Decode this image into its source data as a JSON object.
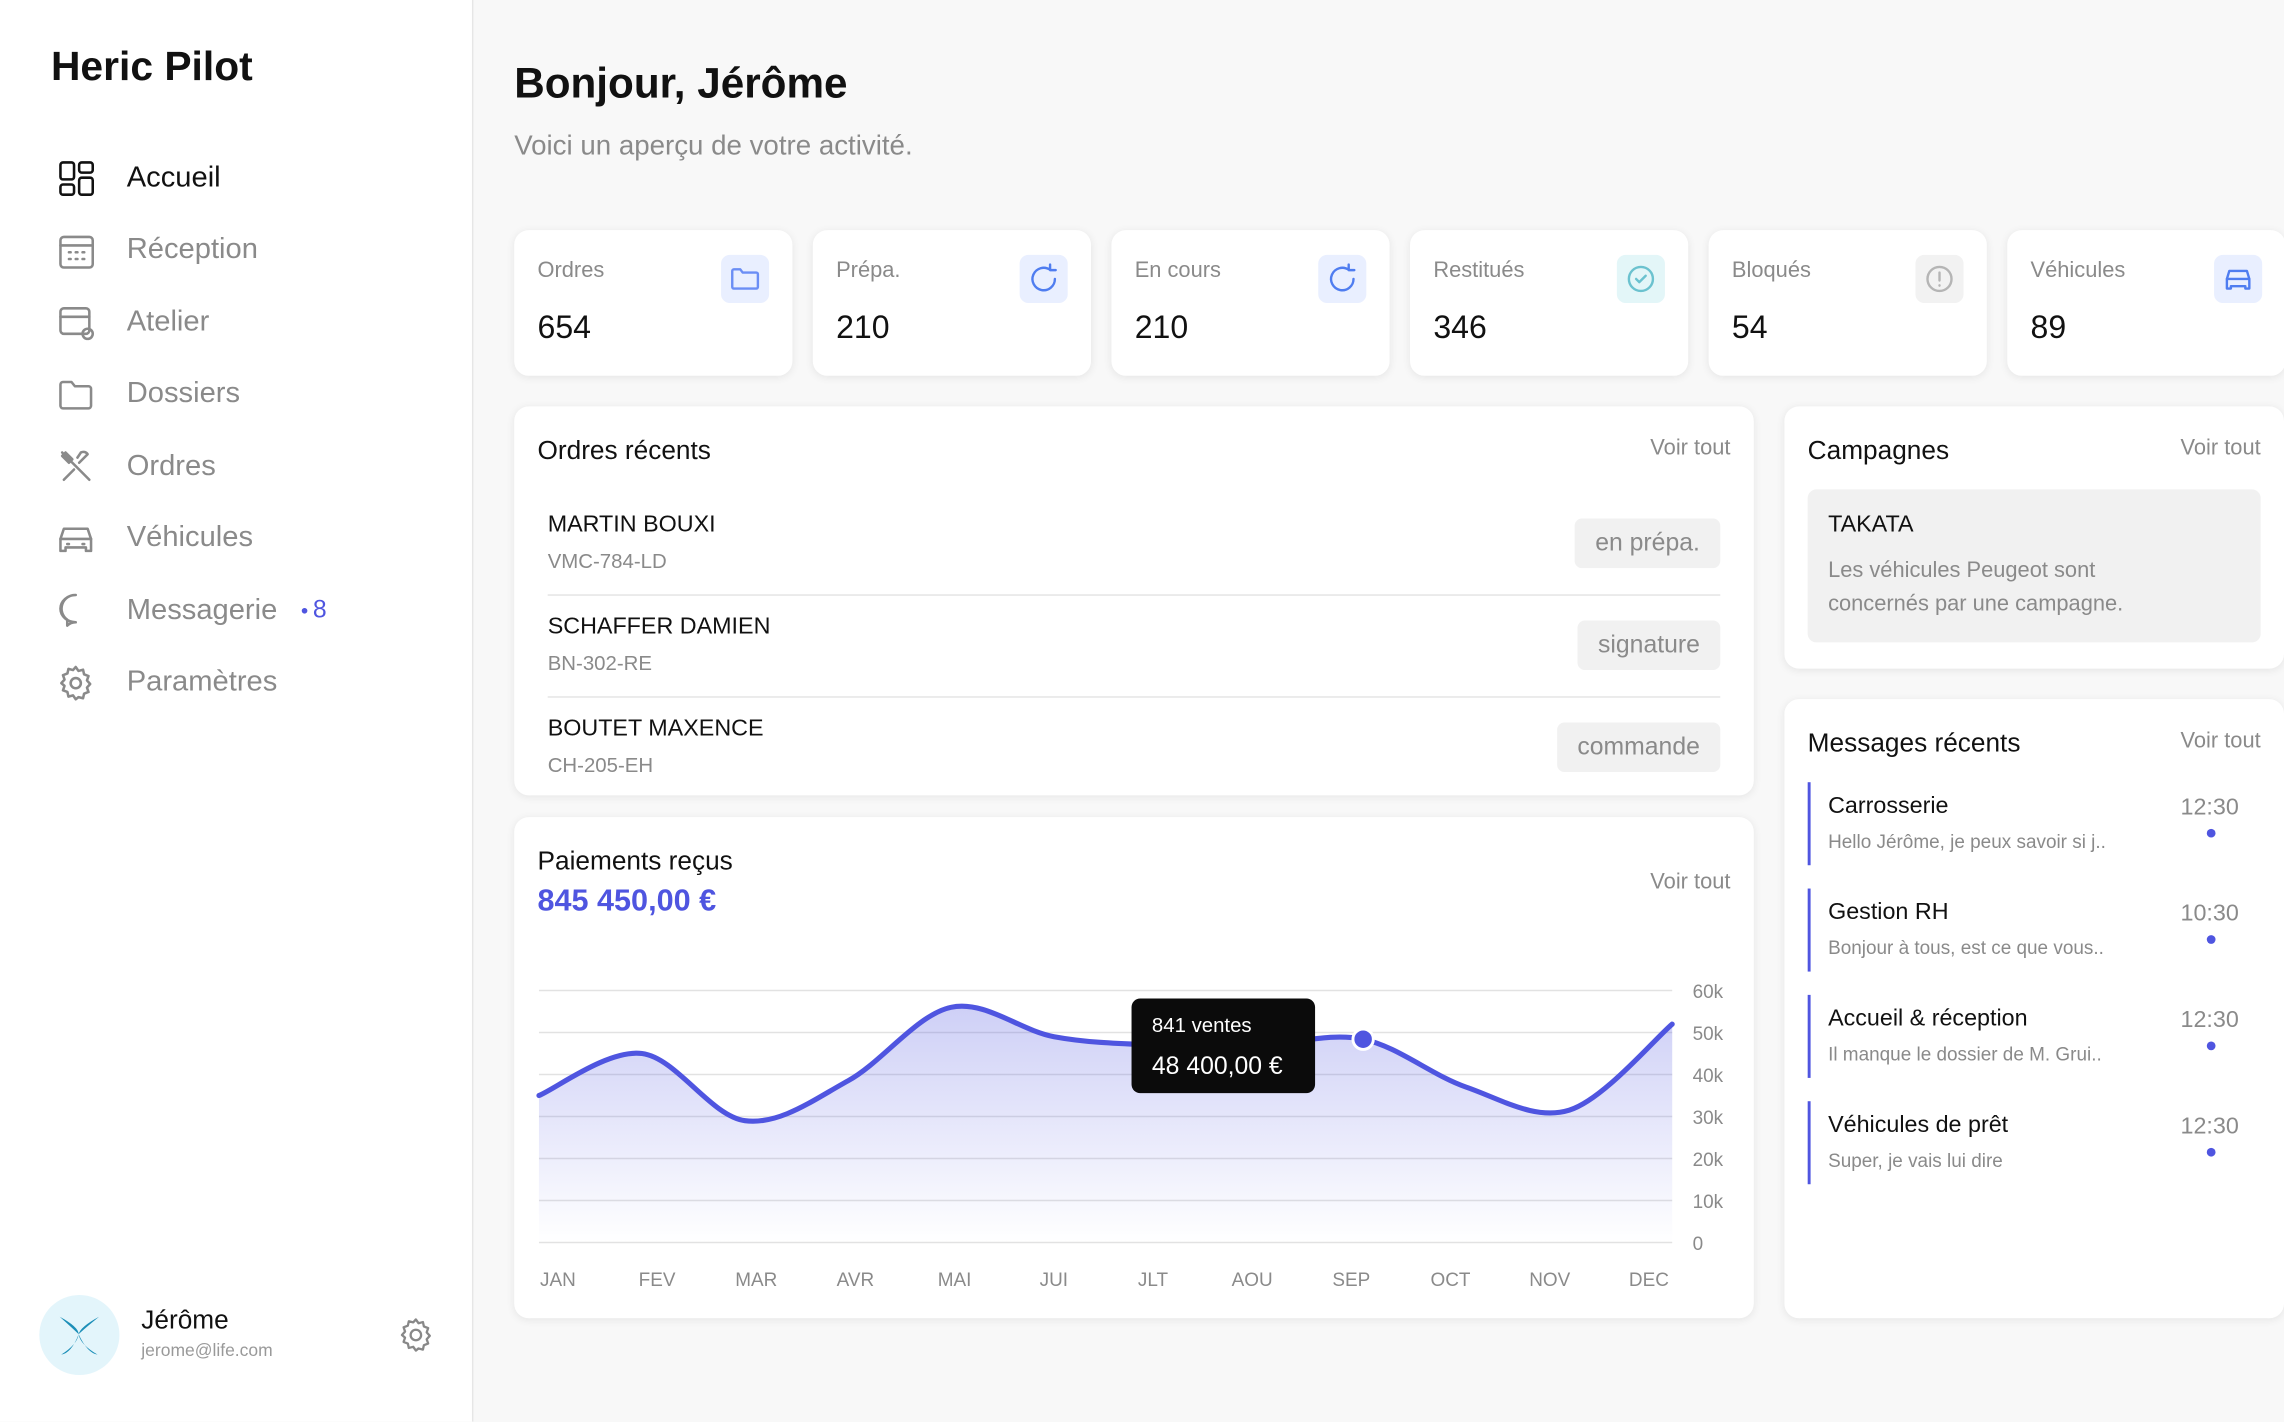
{
  "sidebar": {
    "brand": "Heric Pilot",
    "nav": [
      {
        "label": "Accueil"
      },
      {
        "label": "Réception"
      },
      {
        "label": "Atelier"
      },
      {
        "label": "Dossiers"
      },
      {
        "label": "Ordres"
      },
      {
        "label": "Véhicules"
      },
      {
        "label": "Messagerie"
      },
      {
        "label": "Paramètres"
      }
    ],
    "badge": 8,
    "user": {
      "name": "Jérôme",
      "email": "jerome@life.com"
    }
  },
  "header": {
    "title": "Bonjour, Jérôme",
    "subtitle": "Voici un aperçu de votre activité."
  },
  "stats": [
    {
      "label": "Ordres",
      "value": 654
    },
    {
      "label": "Prépa.",
      "value": 210
    },
    {
      "label": "En cours",
      "value": 210
    },
    {
      "label": "Restitués",
      "value": 346
    },
    {
      "label": "Bloqués",
      "value": 54
    },
    {
      "label": "Véhicules",
      "value": 89
    }
  ],
  "recent_orders": {
    "title": "Ordres récents",
    "link": "Voir tout",
    "rows": [
      {
        "name": "MARTIN BOUXI",
        "plate": "VMC-784-LD",
        "status": "en prépa."
      },
      {
        "name": "SCHAFFER DAMIEN",
        "plate": "BN-302-RE",
        "status": "signature"
      },
      {
        "name": "BOUTET MAXENCE",
        "plate": "CH-205-EH",
        "status": "commande"
      }
    ]
  },
  "campaigns": {
    "title": "Campagnes",
    "link": "Voir tout",
    "items": [
      {
        "title": "TAKATA",
        "text": "Les véhicules Peugeot sont concernés par une campagne."
      }
    ]
  },
  "messages": {
    "title": "Messages récents",
    "link": "Voir tout",
    "items": [
      {
        "title": "Carrosserie",
        "preview": "Hello Jérôme, je peux savoir si j..",
        "time": "12:30"
      },
      {
        "title": "Gestion RH",
        "preview": "Bonjour à tous, est ce que vous..",
        "time": "10:30"
      },
      {
        "title": "Accueil & réception",
        "preview": "Il manque le dossier de M. Grui..",
        "time": "12:30"
      },
      {
        "title": "Véhicules de prêt",
        "preview": "Super, je vais lui dire",
        "time": "12:30"
      }
    ]
  },
  "chart_data": {
    "type": "line",
    "title": "Paiements reçus",
    "subtitle": "845 450,00 €",
    "link": "Voir tout",
    "annotation": "841 ventes",
    "categories": [
      "JAN",
      "FEV",
      "MAR",
      "AVR",
      "MAI",
      "JUI",
      "JLT",
      "AOU",
      "SEP",
      "OCT",
      "NOV",
      "DEC"
    ],
    "values": [
      35000,
      45000,
      29000,
      38500,
      56000,
      49000,
      47000,
      47000,
      48400,
      37000,
      31500,
      52000
    ],
    "value_labels": [
      null,
      null,
      null,
      null,
      null,
      null,
      null,
      null,
      "48 400,00 €",
      null,
      null,
      null
    ],
    "color": "#4f55e0",
    "ylim": [
      0,
      60000
    ],
    "yticks": [
      0,
      {
        "value": 10000,
        "label": "10k"
      },
      {
        "value": 20000,
        "label": "20k"
      },
      {
        "value": 30000,
        "label": "30k"
      },
      {
        "value": 40000,
        "label": "40k"
      },
      {
        "value": 50000,
        "label": "50k"
      },
      {
        "value": 60000,
        "label": "60k"
      }
    ],
    "grid": true
  }
}
